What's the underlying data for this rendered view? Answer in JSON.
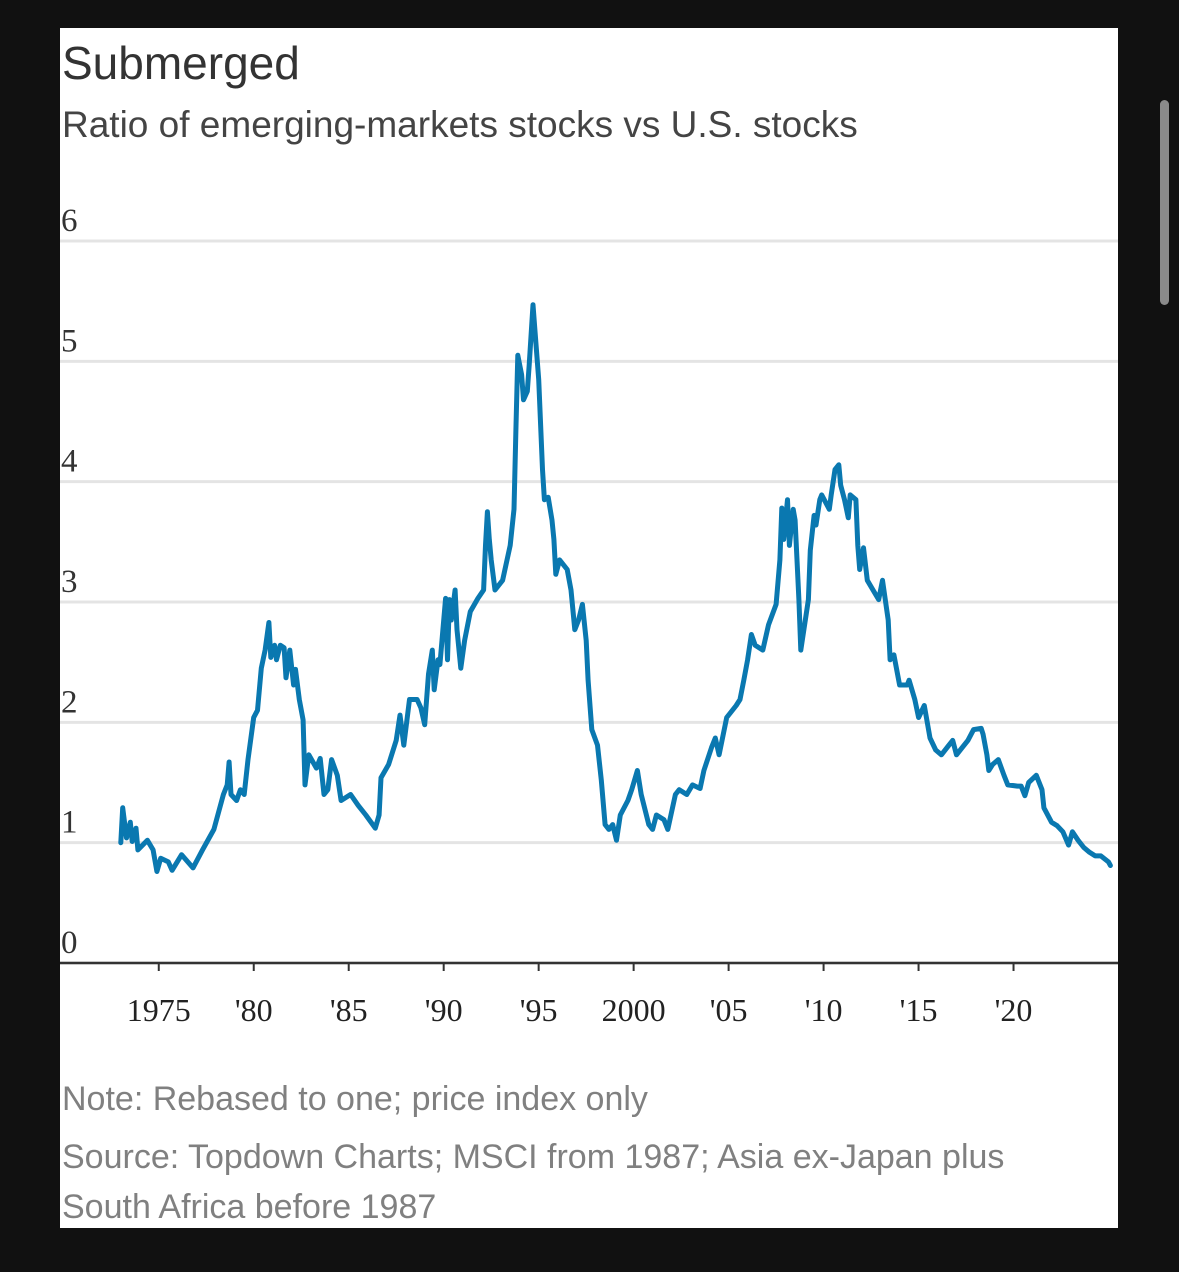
{
  "chart_data": {
    "type": "line",
    "title": "Submerged",
    "subtitle": "Ratio of emerging-markets stocks vs U.S. stocks",
    "note": "Note: Rebased to one; price index only",
    "source": "Source: Topdown Charts; MSCI from 1987; Asia ex-Japan plus South Africa before 1987",
    "color": "#0a78b0",
    "grid": true,
    "xlim": [
      1969.8,
      2025.5
    ],
    "ylim": [
      0,
      6
    ],
    "yticks": [
      0,
      1,
      2,
      3,
      4,
      5,
      6
    ],
    "xticks": [
      1975,
      {
        "value": 1980,
        "label": "'80"
      },
      {
        "value": 1985,
        "label": "'85"
      },
      {
        "value": 1990,
        "label": "'90"
      },
      {
        "value": 1995,
        "label": "'95"
      },
      2000,
      {
        "value": 2005,
        "label": "'05"
      },
      {
        "value": 2010,
        "label": "'10"
      },
      {
        "value": 2015,
        "label": "'15"
      },
      {
        "value": 2020,
        "label": "'20"
      }
    ],
    "x": [
      1973.0,
      1973.1,
      1973.3,
      1973.5,
      1973.6,
      1973.8,
      1973.9,
      1974.4,
      1974.7,
      1974.9,
      1975.1,
      1975.5,
      1975.7,
      1976.2,
      1976.8,
      1977.3,
      1977.9,
      1978.4,
      1978.6,
      1978.7,
      1978.8,
      1979.1,
      1979.3,
      1979.5,
      1979.7,
      1980.0,
      1980.2,
      1980.4,
      1980.6,
      1980.8,
      1980.9,
      1981.1,
      1981.2,
      1981.4,
      1981.6,
      1981.7,
      1981.9,
      1982.1,
      1982.2,
      1982.4,
      1982.6,
      1982.7,
      1982.9,
      1983.3,
      1983.5,
      1983.7,
      1983.9,
      1984.1,
      1984.4,
      1984.6,
      1985.1,
      1985.5,
      1985.9,
      1986.4,
      1986.6,
      1986.7,
      1987.1,
      1987.5,
      1987.7,
      1987.9,
      1988.2,
      1988.6,
      1988.8,
      1989.0,
      1989.2,
      1989.4,
      1989.5,
      1989.7,
      1989.8,
      1990.1,
      1990.2,
      1990.3,
      1990.4,
      1990.6,
      1990.7,
      1990.9,
      1991.1,
      1991.4,
      1991.8,
      1992.1,
      1992.2,
      1992.3,
      1992.4,
      1992.5,
      1992.7,
      1993.1,
      1993.5,
      1993.7,
      1993.8,
      1993.9,
      1994.1,
      1994.2,
      1994.4,
      1994.5,
      1994.7,
      1994.8,
      1995.0,
      1995.2,
      1995.3,
      1995.5,
      1995.7,
      1995.8,
      1995.9,
      1996.1,
      1996.5,
      1996.7,
      1996.9,
      1997.1,
      1997.3,
      1997.5,
      1997.6,
      1997.8,
      1998.1,
      1998.3,
      1998.5,
      1998.7,
      1998.9,
      1999.1,
      1999.3,
      1999.7,
      1999.9,
      2000.2,
      2000.4,
      2000.8,
      2001.0,
      2001.2,
      2001.6,
      2001.8,
      2002.2,
      2002.4,
      2002.8,
      2003.1,
      2003.5,
      2003.7,
      2004.1,
      2004.3,
      2004.5,
      2004.9,
      2005.4,
      2005.6,
      2005.8,
      2006.0,
      2006.2,
      2006.4,
      2006.8,
      2007.1,
      2007.5,
      2007.7,
      2007.8,
      2007.9,
      2008.1,
      2008.2,
      2008.4,
      2008.5,
      2008.7,
      2008.8,
      2009.2,
      2009.3,
      2009.5,
      2009.6,
      2009.8,
      2009.9,
      2010.3,
      2010.4,
      2010.6,
      2010.8,
      2010.9,
      2011.1,
      2011.3,
      2011.4,
      2011.7,
      2011.8,
      2011.9,
      2012.1,
      2012.3,
      2012.6,
      2012.9,
      2013.1,
      2013.4,
      2013.5,
      2013.7,
      2014.0,
      2014.4,
      2014.5,
      2014.8,
      2015.0,
      2015.3,
      2015.6,
      2015.9,
      2016.2,
      2016.6,
      2016.8,
      2017.0,
      2017.3,
      2017.6,
      2017.9,
      2018.3,
      2018.4,
      2018.6,
      2018.7,
      2018.9,
      2019.2,
      2019.5,
      2019.7,
      2020.2,
      2020.4,
      2020.6,
      2020.8,
      2021.2,
      2021.5,
      2021.6,
      2022.0,
      2022.3,
      2022.6,
      2022.9,
      2023.1,
      2023.4,
      2023.7,
      2024.0,
      2024.3,
      2024.6,
      2025.0,
      2025.1
    ],
    "values": [
      1.0,
      1.29,
      1.04,
      1.17,
      1.01,
      1.12,
      0.94,
      1.02,
      0.94,
      0.76,
      0.87,
      0.84,
      0.77,
      0.9,
      0.79,
      0.94,
      1.11,
      1.4,
      1.48,
      1.67,
      1.4,
      1.35,
      1.44,
      1.4,
      1.69,
      2.04,
      2.1,
      2.45,
      2.6,
      2.83,
      2.54,
      2.64,
      2.52,
      2.64,
      2.62,
      2.37,
      2.6,
      2.31,
      2.44,
      2.19,
      2.02,
      1.48,
      1.73,
      1.62,
      1.7,
      1.4,
      1.44,
      1.69,
      1.56,
      1.35,
      1.4,
      1.31,
      1.23,
      1.12,
      1.23,
      1.54,
      1.65,
      1.85,
      2.06,
      1.81,
      2.19,
      2.19,
      2.12,
      1.98,
      2.4,
      2.6,
      2.27,
      2.52,
      2.48,
      3.03,
      2.52,
      3.02,
      2.85,
      3.1,
      2.77,
      2.45,
      2.68,
      2.92,
      3.03,
      3.1,
      3.47,
      3.75,
      3.52,
      3.35,
      3.1,
      3.18,
      3.47,
      3.77,
      4.43,
      5.05,
      4.89,
      4.68,
      4.75,
      4.97,
      5.47,
      5.26,
      4.85,
      4.1,
      3.85,
      3.87,
      3.68,
      3.52,
      3.23,
      3.35,
      3.27,
      3.1,
      2.77,
      2.85,
      2.98,
      2.68,
      2.35,
      1.94,
      1.81,
      1.52,
      1.15,
      1.11,
      1.15,
      1.02,
      1.23,
      1.35,
      1.44,
      1.6,
      1.4,
      1.15,
      1.11,
      1.23,
      1.19,
      1.11,
      1.4,
      1.44,
      1.4,
      1.48,
      1.45,
      1.6,
      1.79,
      1.87,
      1.73,
      2.04,
      2.14,
      2.19,
      2.35,
      2.52,
      2.73,
      2.64,
      2.6,
      2.81,
      2.98,
      3.35,
      3.78,
      3.52,
      3.85,
      3.47,
      3.77,
      3.68,
      3.02,
      2.6,
      3.02,
      3.43,
      3.72,
      3.64,
      3.85,
      3.89,
      3.77,
      3.89,
      4.1,
      4.14,
      3.97,
      3.85,
      3.7,
      3.89,
      3.85,
      3.47,
      3.27,
      3.45,
      3.18,
      3.1,
      3.02,
      3.18,
      2.85,
      2.52,
      2.56,
      2.31,
      2.31,
      2.35,
      2.19,
      2.04,
      2.14,
      1.87,
      1.77,
      1.73,
      1.81,
      1.85,
      1.73,
      1.79,
      1.85,
      1.94,
      1.95,
      1.9,
      1.73,
      1.6,
      1.65,
      1.69,
      1.56,
      1.48,
      1.47,
      1.47,
      1.39,
      1.5,
      1.56,
      1.44,
      1.29,
      1.17,
      1.14,
      1.09,
      0.98,
      1.09,
      1.02,
      0.96,
      0.92,
      0.89,
      0.89,
      0.84,
      0.81
    ]
  }
}
